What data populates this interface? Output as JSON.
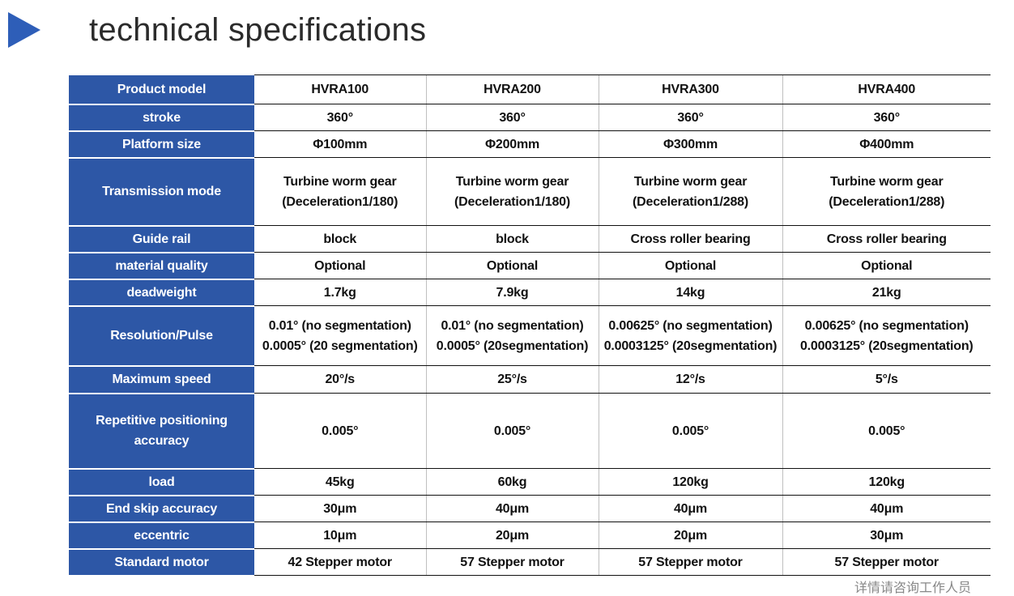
{
  "title": "technical specifications",
  "table": {
    "models": [
      "HVRA100",
      "HVRA200",
      "HVRA300",
      "HVRA400"
    ],
    "header_label": "Product model",
    "rows": [
      {
        "label": "stroke",
        "values": [
          [
            "360°"
          ],
          [
            "360°"
          ],
          [
            "360°"
          ],
          [
            "360°"
          ]
        ]
      },
      {
        "label": "Platform size",
        "values": [
          [
            "Φ100mm"
          ],
          [
            "Φ200mm"
          ],
          [
            "Φ300mm"
          ],
          [
            "Φ400mm"
          ]
        ]
      },
      {
        "label": "Transmission mode",
        "values": [
          [
            "Turbine worm gear",
            "(Deceleration1/180)"
          ],
          [
            "Turbine worm gear",
            "(Deceleration1/180)"
          ],
          [
            "Turbine worm gear",
            "(Deceleration1/288)"
          ],
          [
            "Turbine worm gear",
            "(Deceleration1/288)"
          ]
        ]
      },
      {
        "label": "Guide rail",
        "values": [
          [
            "block"
          ],
          [
            "block"
          ],
          [
            "Cross roller bearing"
          ],
          [
            "Cross roller bearing"
          ]
        ]
      },
      {
        "label": "material quality",
        "values": [
          [
            "Optional"
          ],
          [
            "Optional"
          ],
          [
            "Optional"
          ],
          [
            "Optional"
          ]
        ]
      },
      {
        "label": "deadweight",
        "values": [
          [
            "1.7kg"
          ],
          [
            "7.9kg"
          ],
          [
            "14kg"
          ],
          [
            "21kg"
          ]
        ]
      },
      {
        "label": "Resolution/Pulse",
        "values": [
          [
            "0.01°  (no segmentation)",
            "0.0005°  (20 segmentation)"
          ],
          [
            "0.01°  (no segmentation)",
            "0.0005°  (20segmentation)"
          ],
          [
            "0.00625°  (no segmentation)",
            "0.0003125°  (20segmentation)"
          ],
          [
            "0.00625°  (no segmentation)",
            "0.0003125°  (20segmentation)"
          ]
        ]
      },
      {
        "label": "Maximum speed",
        "values": [
          [
            "20°/s"
          ],
          [
            "25°/s"
          ],
          [
            "12°/s"
          ],
          [
            "5°/s"
          ]
        ]
      },
      {
        "label": "Repetitive positioning accuracy",
        "values": [
          [
            "0.005°"
          ],
          [
            "0.005°"
          ],
          [
            "0.005°"
          ],
          [
            "0.005°"
          ]
        ]
      },
      {
        "label": "load",
        "values": [
          [
            "45kg"
          ],
          [
            "60kg"
          ],
          [
            "120kg"
          ],
          [
            "120kg"
          ]
        ]
      },
      {
        "label": "End skip accuracy",
        "values": [
          [
            "30μm"
          ],
          [
            "40μm"
          ],
          [
            "40μm"
          ],
          [
            "40μm"
          ]
        ]
      },
      {
        "label": "eccentric",
        "values": [
          [
            "10μm"
          ],
          [
            "20μm"
          ],
          [
            "20μm"
          ],
          [
            "30μm"
          ]
        ]
      },
      {
        "label": "Standard motor",
        "values": [
          [
            "42 Stepper motor"
          ],
          [
            "57 Stepper motor"
          ],
          [
            "57 Stepper motor"
          ],
          [
            "57 Stepper motor"
          ]
        ]
      }
    ]
  },
  "footer_note": "详情请咨询工作人员",
  "colors": {
    "header_bg": "#2d57a6",
    "arrow": "#2e5eb8"
  }
}
